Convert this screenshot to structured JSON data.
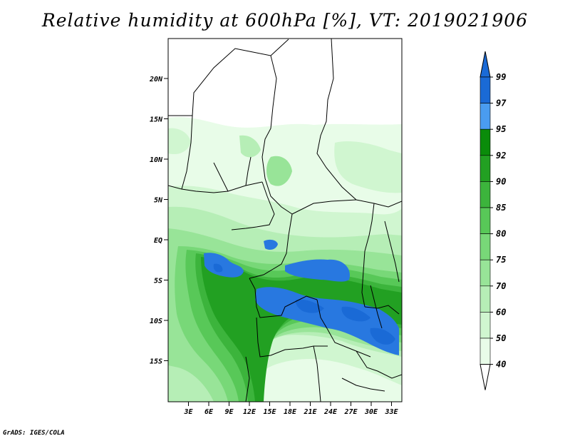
{
  "title": "Relative humidity at 600hPa [%], VT: 2019021906",
  "footer": "GrADS: IGES/COLA",
  "map": {
    "lat_labels": [
      "20N",
      "15N",
      "10N",
      "5N",
      "EQ",
      "5S",
      "10S",
      "15S"
    ],
    "lon_labels": [
      "3E",
      "6E",
      "9E",
      "12E",
      "15E",
      "18E",
      "21E",
      "24E",
      "27E",
      "30E",
      "33E"
    ]
  },
  "colorbar": {
    "labels": [
      "99",
      "97",
      "95",
      "92",
      "90",
      "85",
      "80",
      "75",
      "70",
      "60",
      "50",
      "40"
    ],
    "colors": [
      "#1a6ad6",
      "#2878e0",
      "#4a9cf0",
      "#0a8c0a",
      "#22a022",
      "#3cb43c",
      "#58c858",
      "#78d878",
      "#98e498",
      "#b6eeb6",
      "#d0f6d0",
      "#e8fce8"
    ],
    "upper_arrow_color": "#1a6ad6",
    "lower_arrow_color": "#ffffff"
  },
  "colors": {
    "ocean": "#ffffff",
    "land_dry": "#ffffff",
    "border": "#000000"
  }
}
